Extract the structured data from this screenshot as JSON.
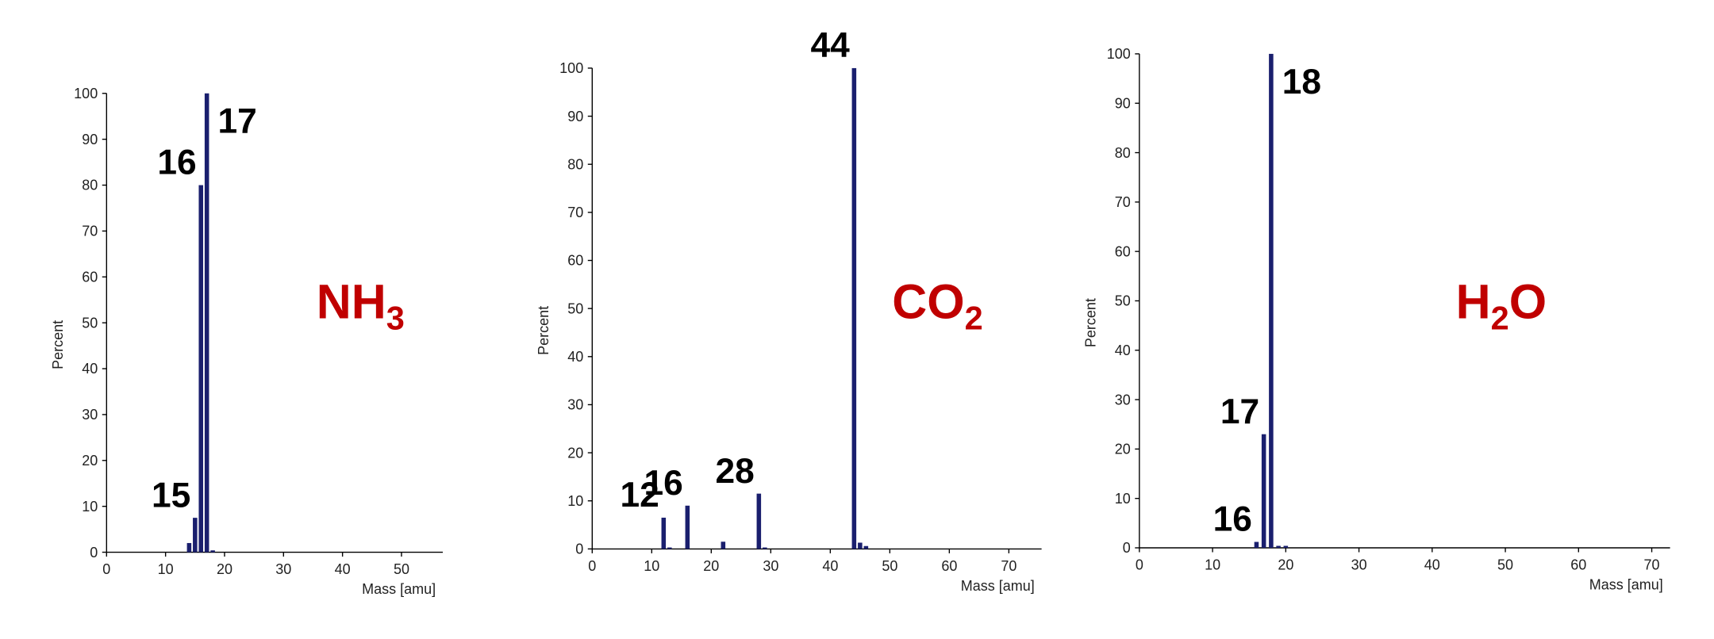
{
  "chart_data": [
    {
      "type": "bar",
      "formula": [
        "NH",
        "3"
      ],
      "xlabel": "Mass [amu]",
      "ylabel": "Percent",
      "x": [
        14,
        15,
        16,
        17,
        18
      ],
      "values": [
        2,
        7.5,
        80,
        100,
        0.4
      ],
      "point_labels": [
        null,
        "15",
        "16",
        "17",
        null
      ],
      "color": "#1a1f6e",
      "xlim": [
        0,
        57
      ],
      "ylim": [
        0,
        100
      ],
      "xticks": [
        0,
        10,
        20,
        30,
        40,
        50
      ],
      "yticks": [
        0,
        10,
        20,
        30,
        40,
        50,
        60,
        70,
        80,
        90,
        100
      ]
    },
    {
      "type": "bar",
      "formula": [
        "CO",
        "2"
      ],
      "xlabel": "Mass [amu]",
      "ylabel": "Percent",
      "x": [
        12,
        13,
        16,
        22,
        28,
        29,
        44,
        45,
        46
      ],
      "values": [
        6.5,
        0.3,
        9,
        1.5,
        11.5,
        0.3,
        100,
        1.3,
        0.6
      ],
      "point_labels": [
        "12",
        null,
        "16",
        null,
        "28",
        null,
        "44",
        null,
        null
      ],
      "color": "#1a1f6e",
      "xlim": [
        0,
        75.5
      ],
      "ylim": [
        0,
        100
      ],
      "xticks": [
        0,
        10,
        20,
        30,
        40,
        50,
        60,
        70
      ],
      "yticks": [
        0,
        10,
        20,
        30,
        40,
        50,
        60,
        70,
        80,
        90,
        100
      ]
    },
    {
      "type": "bar",
      "formula": [
        "H",
        "2",
        "O"
      ],
      "xlabel": "Mass [amu]",
      "ylabel": "Percent",
      "x": [
        16,
        17,
        18,
        19,
        20
      ],
      "values": [
        1.2,
        23,
        100,
        0.4,
        0.4
      ],
      "point_labels": [
        "16",
        "17",
        "18",
        null,
        null
      ],
      "color": "#1a1f6e",
      "xlim": [
        0,
        72.5
      ],
      "ylim": [
        0,
        100
      ],
      "xticks": [
        0,
        10,
        20,
        30,
        40,
        50,
        60,
        70
      ],
      "yticks": [
        0,
        10,
        20,
        30,
        40,
        50,
        60,
        70,
        80,
        90,
        100
      ]
    }
  ]
}
